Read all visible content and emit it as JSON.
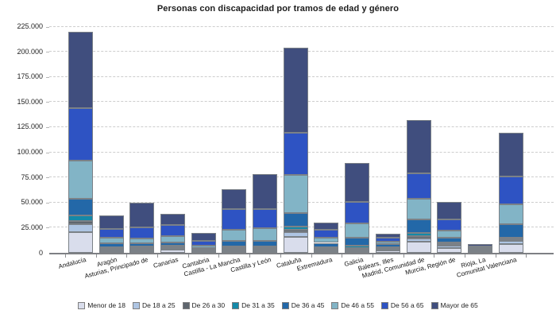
{
  "title": "Personas con discapacidad por tramos de edad y género",
  "colors": {
    "grid": "#cdcdcd",
    "axis": "#7e8084",
    "bar_border": "#7b8187",
    "text": "#1c1c1c"
  },
  "chart_data": {
    "type": "bar",
    "stacked": true,
    "title": "Personas con discapacidad por tramos de edad y género",
    "grid": "horizontal-dashed",
    "legend_position": "bottom",
    "x_label_angle_deg": -15,
    "ylim": [
      0,
      228000
    ],
    "y_ticks": [
      {
        "value": 0,
        "label": "0"
      },
      {
        "value": 25000,
        "label": "25.000"
      },
      {
        "value": 50000,
        "label": "50.000"
      },
      {
        "value": 75000,
        "label": "75.000"
      },
      {
        "value": 100000,
        "label": "100.000"
      },
      {
        "value": 125000,
        "label": "125.000"
      },
      {
        "value": 150000,
        "label": "150.000"
      },
      {
        "value": 175000,
        "label": "175.000"
      },
      {
        "value": 200000,
        "label": "200.000"
      },
      {
        "value": 225000,
        "label": "225.000"
      }
    ],
    "categories": [
      "Andalucía",
      "Aragón",
      "Asturias, Principado de",
      "Canarias",
      "Cantabria",
      "Castilla - La Mancha",
      "Castilla y León",
      "Cataluña",
      "Extremadura",
      "Galicia",
      "Balears, Illes",
      "Madrid, Comunidad de",
      "Murcia, Región de",
      "Rioja, La",
      "Comunitat Valenciana"
    ],
    "series": [
      {
        "name": "Menor de 18",
        "color": "#d9ddec",
        "values": [
          20500,
          1800,
          1600,
          3100,
          900,
          1600,
          1800,
          15500,
          1300,
          1800,
          2100,
          11000,
          4700,
          700,
          8800
        ]
      },
      {
        "name": "De 18 a 25",
        "color": "#aec5e3",
        "values": [
          7800,
          1200,
          1300,
          1300,
          800,
          1600,
          1600,
          5300,
          1500,
          1600,
          1300,
          3600,
          2300,
          500,
          3100
        ]
      },
      {
        "name": "De 26 a 30",
        "color": "#5f666e",
        "values": [
          3100,
          1000,
          1600,
          1000,
          500,
          1300,
          1300,
          1800,
          1500,
          1300,
          1000,
          2400,
          1800,
          300,
          1300
        ]
      },
      {
        "name": "De 31 a 35",
        "color": "#1489a8",
        "values": [
          5400,
          1300,
          1600,
          1600,
          900,
          1600,
          1600,
          3900,
          1500,
          2300,
          1300,
          2800,
          1600,
          400,
          1600
        ]
      },
      {
        "name": "De 36 a 45",
        "color": "#2368a8",
        "values": [
          16800,
          4400,
          3600,
          3600,
          1900,
          5700,
          5700,
          12800,
          4100,
          8300,
          2800,
          13500,
          5000,
          1300,
          13400
        ]
      },
      {
        "name": "De 46 a 55",
        "color": "#82b4c6",
        "values": [
          38000,
          5200,
          4400,
          5900,
          2200,
          11400,
          12400,
          38500,
          5200,
          14200,
          2600,
          20700,
          6500,
          1200,
          19900
        ]
      },
      {
        "name": "De 56 a 65",
        "color": "#2e53c3",
        "values": [
          52200,
          9100,
          10900,
          10900,
          5000,
          20700,
          19400,
          41500,
          7800,
          20900,
          3600,
          25300,
          11000,
          1800,
          27900
        ]
      },
      {
        "name": "Mayor de 65",
        "color": "#404e7e",
        "values": [
          76000,
          13500,
          24800,
          11100,
          7500,
          19400,
          34400,
          85000,
          7100,
          39300,
          4400,
          52400,
          18000,
          2600,
          43200
        ]
      }
    ]
  }
}
